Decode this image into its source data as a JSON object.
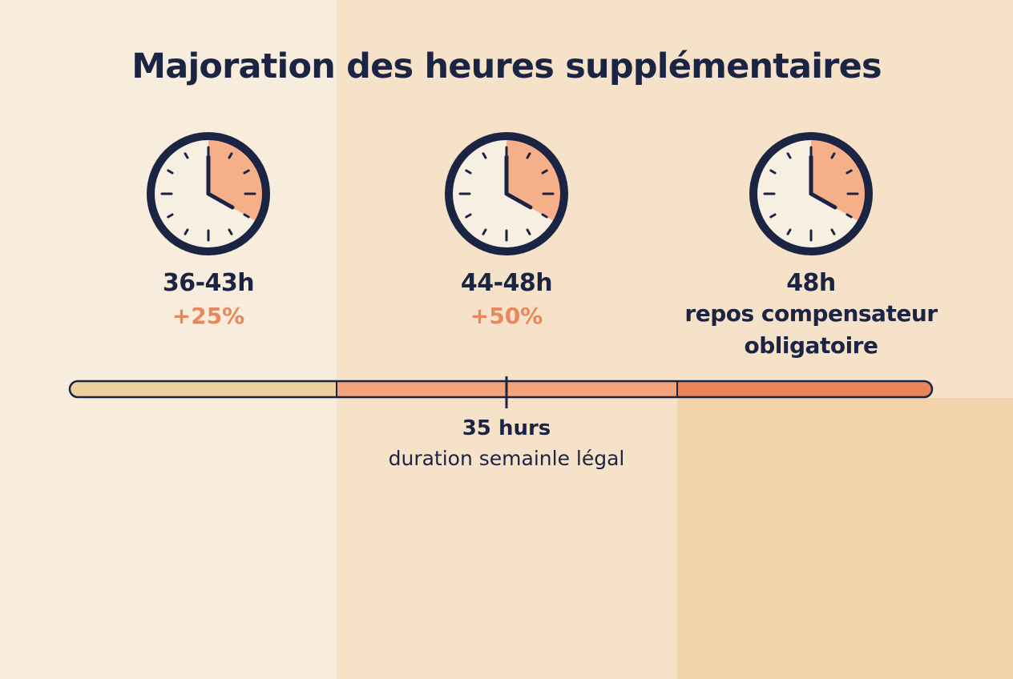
{
  "title": "Majoration des heures supplémentaires",
  "tiers": [
    {
      "hours": "36-43h",
      "rate": "+25%"
    },
    {
      "hours": "44-48h",
      "rate": "+50%"
    },
    {
      "hours": "48h",
      "note_line1": "repos compensateur",
      "note_line2": "obligatoire"
    }
  ],
  "marker": {
    "title": "35 hurs",
    "subtitle": "duration semainle légal"
  },
  "colors": {
    "navy": "#1c2444",
    "accent": "#e8875e",
    "clock_face": "#f7efe2",
    "clock_wedge": "#f5b08a",
    "bar_segment_1": "#efcf9f",
    "bar_segment_2": "#f4a47c",
    "bar_segment_3": "#e9855a"
  }
}
